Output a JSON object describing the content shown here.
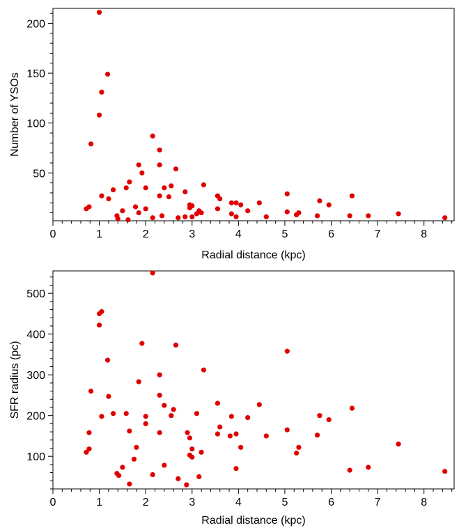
{
  "chart_data": [
    {
      "type": "scatter",
      "xlabel": "Radial distance (kpc)",
      "ylabel": "Number of YSOs",
      "xlim": [
        0,
        8.65
      ],
      "ylim": [
        2,
        215
      ],
      "xticks": [
        "0",
        "1",
        "2",
        "3",
        "4",
        "5",
        "6",
        "7",
        "8"
      ],
      "xtick_values": [
        0,
        1,
        2,
        3,
        4,
        5,
        6,
        7,
        8
      ],
      "yticks": [
        "50",
        "100",
        "150",
        "200"
      ],
      "ytick_values": [
        50,
        100,
        150,
        200
      ],
      "marker_color": "#e00000",
      "series": [
        {
          "points": [
            [
              1.0,
              211
            ],
            [
              1.18,
              149
            ],
            [
              1.05,
              131
            ],
            [
              1.0,
              108
            ],
            [
              0.82,
              79
            ],
            [
              2.15,
              87
            ],
            [
              2.3,
              73
            ],
            [
              1.85,
              58
            ],
            [
              2.3,
              58
            ],
            [
              2.65,
              54
            ],
            [
              1.92,
              50
            ],
            [
              1.65,
              41
            ],
            [
              3.25,
              38
            ],
            [
              2.55,
              37
            ],
            [
              2.4,
              35
            ],
            [
              2.0,
              35
            ],
            [
              1.58,
              35
            ],
            [
              1.3,
              33
            ],
            [
              2.85,
              31
            ],
            [
              1.05,
              27
            ],
            [
              2.3,
              27
            ],
            [
              3.55,
              27
            ],
            [
              6.45,
              27
            ],
            [
              2.5,
              26
            ],
            [
              3.6,
              24
            ],
            [
              1.2,
              24
            ],
            [
              5.05,
              29
            ],
            [
              5.75,
              22
            ],
            [
              4.45,
              20
            ],
            [
              3.85,
              20
            ],
            [
              3.95,
              20
            ],
            [
              4.05,
              18
            ],
            [
              5.95,
              18
            ],
            [
              0.78,
              16
            ],
            [
              0.72,
              14
            ],
            [
              1.78,
              16
            ],
            [
              2.0,
              14
            ],
            [
              2.95,
              18
            ],
            [
              3.0,
              17
            ],
            [
              2.95,
              15
            ],
            [
              1.5,
              12
            ],
            [
              3.55,
              14
            ],
            [
              3.15,
              12
            ],
            [
              3.1,
              9
            ],
            [
              3.2,
              10
            ],
            [
              4.2,
              12
            ],
            [
              5.05,
              11
            ],
            [
              5.3,
              10
            ],
            [
              3.85,
              9
            ],
            [
              1.85,
              10
            ],
            [
              5.25,
              8
            ],
            [
              1.38,
              7
            ],
            [
              2.35,
              7
            ],
            [
              2.7,
              5
            ],
            [
              2.85,
              6
            ],
            [
              3.0,
              6
            ],
            [
              3.95,
              6
            ],
            [
              2.15,
              5
            ],
            [
              1.4,
              4
            ],
            [
              1.62,
              3
            ],
            [
              4.6,
              6
            ],
            [
              5.7,
              7
            ],
            [
              6.4,
              7
            ],
            [
              6.8,
              7
            ],
            [
              7.45,
              9
            ],
            [
              8.45,
              5
            ]
          ]
        }
      ]
    },
    {
      "type": "scatter",
      "xlabel": "Radial distance (kpc)",
      "ylabel": "SFR radius (pc)",
      "xlim": [
        0,
        8.65
      ],
      "ylim": [
        20,
        555
      ],
      "xticks": [
        "0",
        "1",
        "2",
        "3",
        "4",
        "5",
        "6",
        "7",
        "8"
      ],
      "xtick_values": [
        0,
        1,
        2,
        3,
        4,
        5,
        6,
        7,
        8
      ],
      "yticks": [
        "100",
        "200",
        "300",
        "400",
        "500"
      ],
      "ytick_values": [
        100,
        200,
        300,
        400,
        500
      ],
      "marker_color": "#e00000",
      "series": [
        {
          "points": [
            [
              2.15,
              550
            ],
            [
              1.05,
              455
            ],
            [
              1.0,
              450
            ],
            [
              1.0,
              422
            ],
            [
              1.92,
              377
            ],
            [
              2.65,
              373
            ],
            [
              5.05,
              358
            ],
            [
              1.18,
              336
            ],
            [
              3.25,
              312
            ],
            [
              2.3,
              300
            ],
            [
              1.85,
              283
            ],
            [
              0.82,
              260
            ],
            [
              2.3,
              250
            ],
            [
              1.2,
              247
            ],
            [
              2.4,
              225
            ],
            [
              3.55,
              230
            ],
            [
              4.45,
              227
            ],
            [
              6.45,
              218
            ],
            [
              2.6,
              215
            ],
            [
              1.3,
              205
            ],
            [
              1.58,
              205
            ],
            [
              3.1,
              205
            ],
            [
              1.05,
              198
            ],
            [
              2.0,
              198
            ],
            [
              2.55,
              200
            ],
            [
              3.85,
              198
            ],
            [
              4.2,
              195
            ],
            [
              5.75,
              200
            ],
            [
              5.95,
              190
            ],
            [
              2.0,
              180
            ],
            [
              3.6,
              172
            ],
            [
              5.05,
              165
            ],
            [
              2.3,
              158
            ],
            [
              1.65,
              162
            ],
            [
              0.78,
              158
            ],
            [
              2.9,
              158
            ],
            [
              3.55,
              155
            ],
            [
              3.95,
              155
            ],
            [
              3.82,
              150
            ],
            [
              4.6,
              150
            ],
            [
              5.7,
              152
            ],
            [
              2.95,
              145
            ],
            [
              7.45,
              130
            ],
            [
              1.8,
              122
            ],
            [
              3.0,
              118
            ],
            [
              4.05,
              122
            ],
            [
              5.3,
              122
            ],
            [
              0.78,
              118
            ],
            [
              0.72,
              110
            ],
            [
              3.2,
              110
            ],
            [
              5.25,
              108
            ],
            [
              2.95,
              103
            ],
            [
              3.0,
              98
            ],
            [
              1.75,
              93
            ],
            [
              2.4,
              78
            ],
            [
              1.5,
              73
            ],
            [
              6.8,
              73
            ],
            [
              3.95,
              70
            ],
            [
              6.4,
              66
            ],
            [
              8.45,
              63
            ],
            [
              1.38,
              58
            ],
            [
              1.42,
              53
            ],
            [
              2.15,
              55
            ],
            [
              3.15,
              50
            ],
            [
              2.7,
              45
            ],
            [
              1.65,
              32
            ],
            [
              2.88,
              30
            ]
          ]
        }
      ]
    }
  ]
}
